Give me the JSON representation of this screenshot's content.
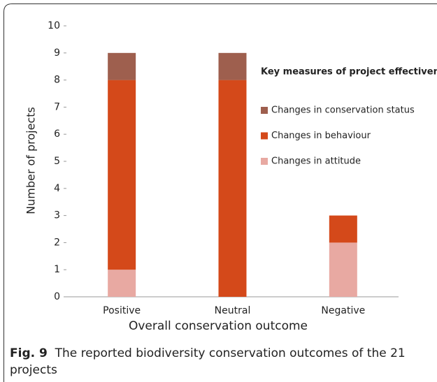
{
  "chart_data": {
    "type": "stacked_bar",
    "y_label": "Number of projects",
    "x_label": "Overall conservation outcome",
    "legend_title": "Key measures of project effectiveness",
    "categories": [
      "Positive",
      "Neutral",
      "Negative"
    ],
    "series": [
      {
        "name": "Changes in attitude",
        "color": "#e8a9a2",
        "values": [
          1,
          0,
          2
        ]
      },
      {
        "name": "Changes in behaviour",
        "color": "#d4491a",
        "values": [
          7,
          8,
          1
        ]
      },
      {
        "name": "Changes in conservation status",
        "color": "#9e5f4e",
        "values": [
          1,
          1,
          0
        ]
      }
    ],
    "ylim": [
      0,
      10
    ],
    "yticks": [
      0,
      1,
      2,
      3,
      4,
      5,
      6,
      7,
      8,
      9,
      10
    ],
    "caption_label": "Fig. 9",
    "caption": "The reported biodiversity conservation outcomes of the 21 projects"
  }
}
